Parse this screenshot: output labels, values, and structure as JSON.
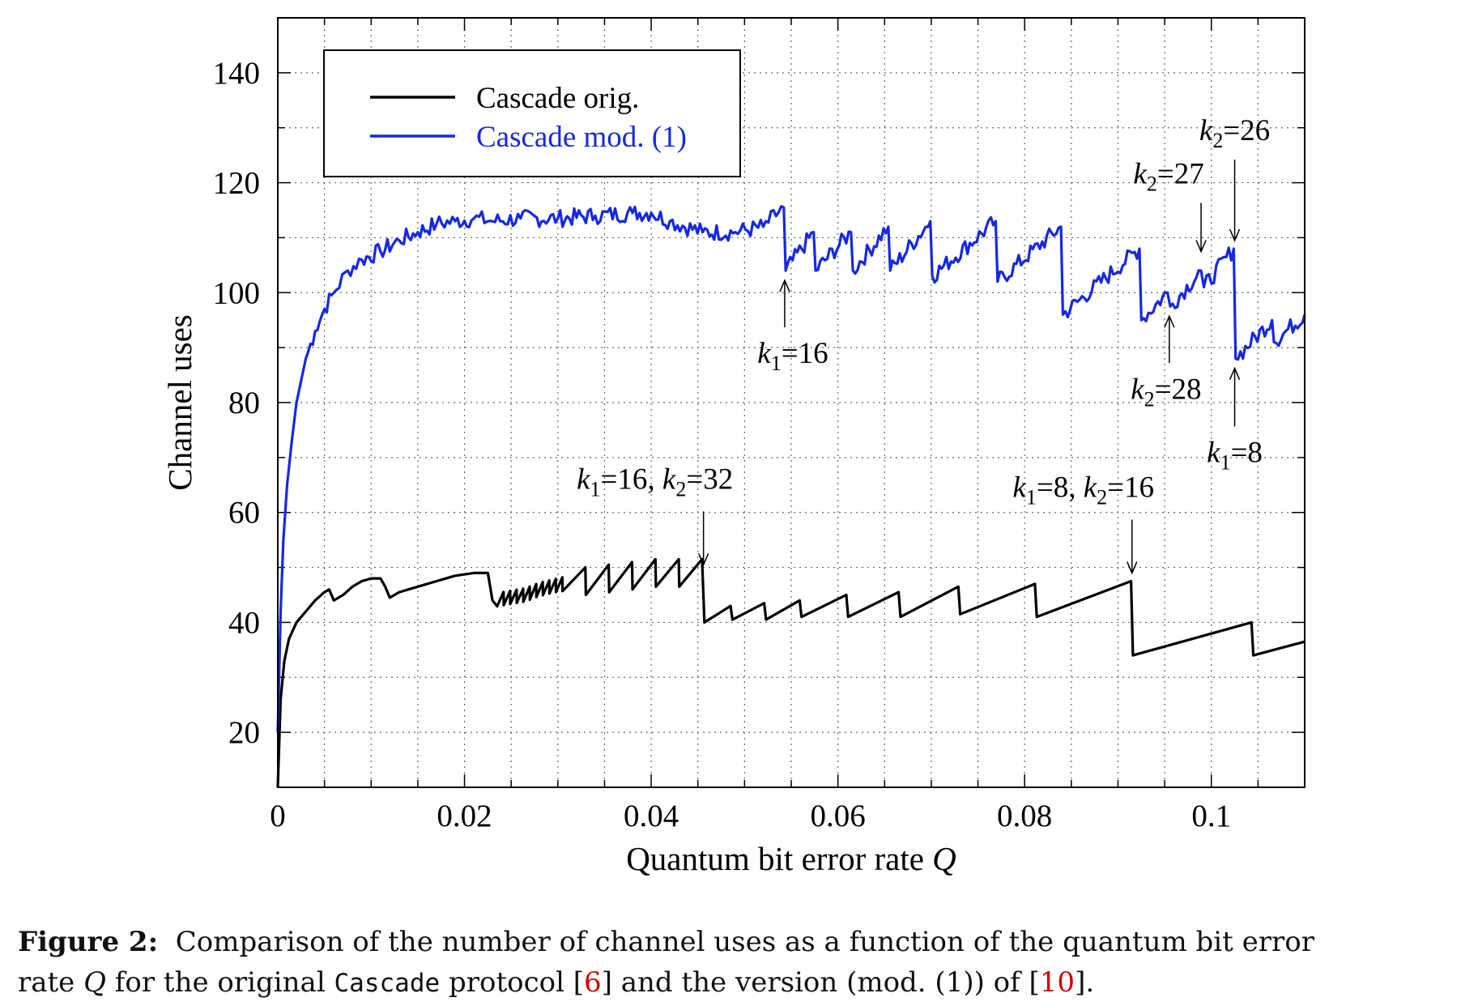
{
  "chart_data": {
    "type": "line",
    "xlabel": "Quantum bit error rate Q",
    "ylabel": "Channel uses",
    "xlim": [
      0,
      0.11
    ],
    "ylim": [
      10,
      150
    ],
    "x_ticks": [
      0,
      0.02,
      0.04,
      0.06,
      0.08,
      0.1
    ],
    "x_tick_labels": [
      "0",
      "0.02",
      "0.04",
      "0.06",
      "0.08",
      "0.1"
    ],
    "y_ticks": [
      20,
      40,
      60,
      80,
      100,
      120,
      140
    ],
    "y_tick_labels": [
      "20",
      "40",
      "60",
      "80",
      "100",
      "120",
      "140"
    ],
    "grid": true,
    "legend": {
      "position": "top-left",
      "entries": [
        {
          "name": "Cascade orig.",
          "color": "#000000"
        },
        {
          "name": "Cascade mod. (1)",
          "color": "#1428e6"
        }
      ]
    },
    "series": [
      {
        "name": "Cascade orig.",
        "color": "#000000",
        "points": [
          [
            0,
            10
          ],
          [
            0.0003,
            26
          ],
          [
            0.0007,
            33
          ],
          [
            0.0012,
            37
          ],
          [
            0.002,
            40
          ],
          [
            0.003,
            42
          ],
          [
            0.004,
            44
          ],
          [
            0.005,
            45.5
          ],
          [
            0.0055,
            46
          ],
          [
            0.006,
            44
          ],
          [
            0.007,
            45
          ],
          [
            0.008,
            46.5
          ],
          [
            0.009,
            47.5
          ],
          [
            0.01,
            48
          ],
          [
            0.011,
            48
          ],
          [
            0.0115,
            46.5
          ],
          [
            0.012,
            44.5
          ],
          [
            0.013,
            45.5
          ],
          [
            0.015,
            46.5
          ],
          [
            0.017,
            47.5
          ],
          [
            0.019,
            48.5
          ],
          [
            0.021,
            49
          ],
          [
            0.0225,
            49
          ],
          [
            0.023,
            44
          ],
          [
            0.0265,
            45
          ],
          [
            0.028,
            46
          ],
          [
            0.0305,
            47
          ],
          [
            0.033,
            47.5
          ],
          [
            0.0355,
            48
          ],
          [
            0.038,
            48.5
          ],
          [
            0.04,
            49
          ],
          [
            0.0425,
            49
          ],
          [
            0.0455,
            49
          ],
          [
            0.0457,
            40
          ],
          [
            0.0485,
            43
          ],
          [
            0.0487,
            40.5
          ],
          [
            0.0521,
            43.5
          ],
          [
            0.0523,
            40.5
          ],
          [
            0.0559,
            44
          ],
          [
            0.0561,
            41
          ],
          [
            0.0609,
            45
          ],
          [
            0.0611,
            41
          ],
          [
            0.0665,
            45.5
          ],
          [
            0.0667,
            41
          ],
          [
            0.0729,
            46.5
          ],
          [
            0.0731,
            41.5
          ],
          [
            0.0811,
            47
          ],
          [
            0.0813,
            41
          ],
          [
            0.0914,
            47.5
          ],
          [
            0.0916,
            34
          ],
          [
            0.1043,
            40
          ],
          [
            0.1045,
            34
          ],
          [
            0.11,
            36.5
          ]
        ],
        "sawtooth_detail": [
          [
            0.0235,
            0.0305,
            0.0007,
            1.2
          ],
          [
            0.0305,
            0.0455,
            0.0025,
            2.5
          ]
        ]
      },
      {
        "name": "Cascade mod. (1)",
        "color": "#1428e6",
        "points": [
          [
            0,
            20
          ],
          [
            0.0003,
            42
          ],
          [
            0.0006,
            55
          ],
          [
            0.001,
            65
          ],
          [
            0.0015,
            73
          ],
          [
            0.002,
            80
          ],
          [
            0.003,
            88
          ],
          [
            0.004,
            93
          ],
          [
            0.005,
            97
          ],
          [
            0.006,
            100
          ],
          [
            0.0075,
            104
          ],
          [
            0.009,
            106
          ],
          [
            0.011,
            107.5
          ],
          [
            0.013,
            109.5
          ],
          [
            0.015,
            111
          ],
          [
            0.017,
            112.5
          ],
          [
            0.019,
            113
          ],
          [
            0.021,
            113.5
          ],
          [
            0.023,
            113
          ],
          [
            0.026,
            113.5
          ],
          [
            0.03,
            113.5
          ],
          [
            0.034,
            114
          ],
          [
            0.038,
            114.5
          ],
          [
            0.04,
            114.5
          ],
          [
            0.042,
            113
          ],
          [
            0.0455,
            111
          ],
          [
            0.049,
            111
          ],
          [
            0.052,
            112
          ],
          [
            0.0542,
            115.5
          ],
          [
            0.0544,
            104
          ],
          [
            0.0574,
            111
          ],
          [
            0.0576,
            104
          ],
          [
            0.0614,
            111
          ],
          [
            0.0616,
            104
          ],
          [
            0.0654,
            112
          ],
          [
            0.0656,
            104
          ],
          [
            0.0699,
            113
          ],
          [
            0.0701,
            103
          ],
          [
            0.0769,
            113
          ],
          [
            0.0771,
            102
          ],
          [
            0.0839,
            112
          ],
          [
            0.0841,
            96
          ],
          [
            0.0923,
            108
          ],
          [
            0.0925,
            95
          ],
          [
            0.0953,
            100
          ],
          [
            0.0956,
            97.5
          ],
          [
            0.0989,
            104
          ],
          [
            0.0992,
            101
          ],
          [
            0.1024,
            108
          ],
          [
            0.1026,
            88
          ],
          [
            0.1065,
            95
          ],
          [
            0.1067,
            91
          ],
          [
            0.11,
            96
          ]
        ],
        "annotations": [
          {
            "text": "k1=16",
            "q": 0.0543,
            "at": 104,
            "label_pos": "below"
          },
          {
            "text": "k2=26",
            "q": 0.1025,
            "at": 108,
            "label_pos": "above"
          },
          {
            "text": "k2=27",
            "q": 0.0989,
            "at": 106,
            "label_pos": "above"
          },
          {
            "text": "k2=28",
            "q": 0.0955,
            "at": 97.5,
            "label_pos": "below"
          },
          {
            "text": "k1=8",
            "q": 0.1025,
            "at": 88,
            "label_pos": "below"
          }
        ]
      }
    ],
    "annotations": [
      {
        "label_parts": [
          "k",
          "1",
          "=16, ",
          "k",
          "2",
          "=32"
        ],
        "q": 0.0456,
        "at": 49,
        "label_pos": "above"
      },
      {
        "label_parts": [
          "k",
          "1",
          "=8, ",
          "k",
          "2",
          "=16"
        ],
        "q": 0.0915,
        "at": 47.5,
        "label_pos": "above"
      }
    ]
  },
  "caption": {
    "label": "Figure 2:",
    "line1": "Comparison of the number of channel uses as a function of the quantum bit error",
    "line2_a": "rate ",
    "line2_var": "Q",
    "line2_b": " for the original ",
    "line2_code": "Cascade",
    "line2_c": " protocol [",
    "ref1": "6",
    "line2_d": "] and the version (mod. (1)) of [",
    "ref2": "10",
    "line2_e": "]."
  }
}
